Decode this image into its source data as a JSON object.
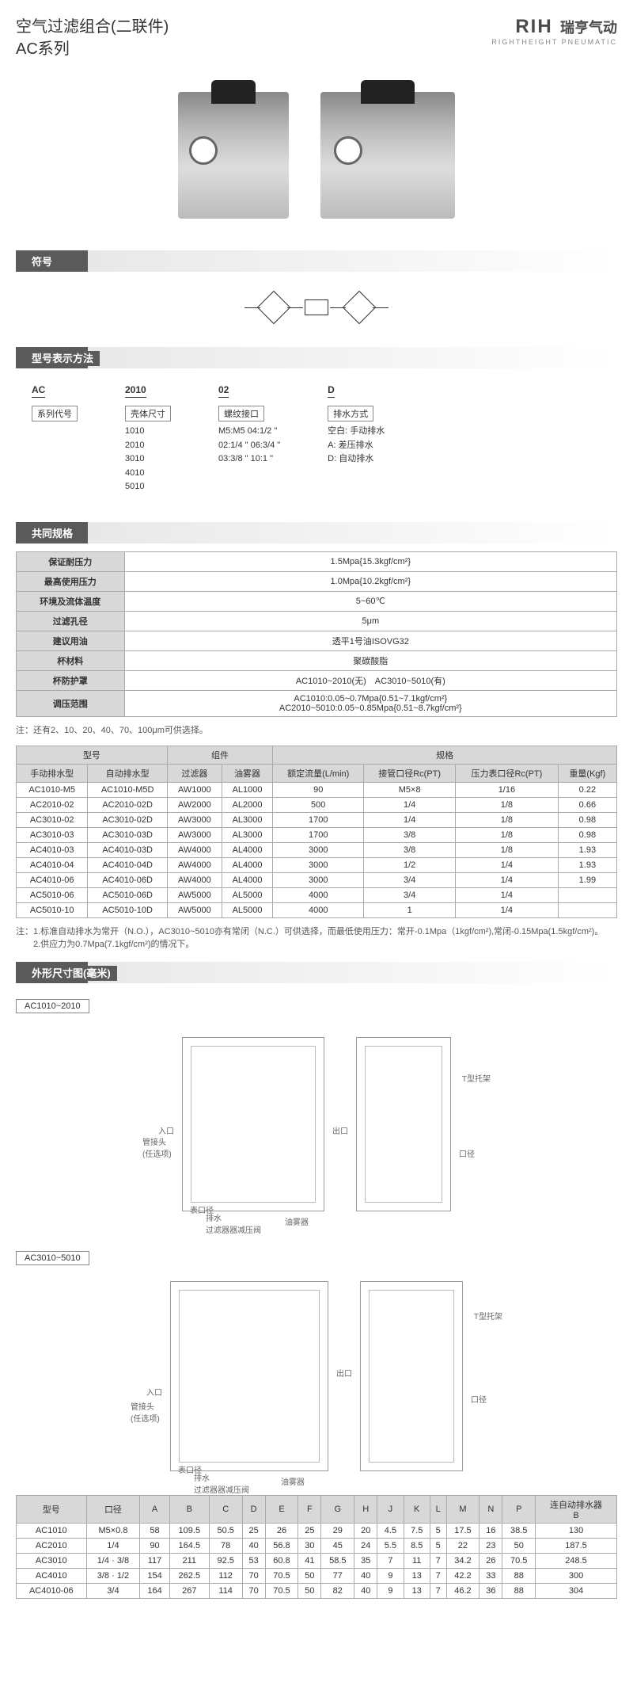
{
  "header": {
    "title_line1": "空气过滤组合(二联件)",
    "title_line2": "AC系列",
    "logo_main": "RIH",
    "logo_cn": "瑞亨气动",
    "logo_sub": "RIGHTHEIGHT PNEUMATIC"
  },
  "sections": {
    "symbol": "符号",
    "model_method": "型号表示方法",
    "common_spec": "共同规格",
    "dimension": "外形尺寸图(毫米)"
  },
  "model_method": {
    "col1": {
      "head": "AC",
      "label": "系列代号"
    },
    "col2": {
      "head": "2010",
      "label": "壳体尺寸",
      "items": [
        "1010",
        "2010",
        "3010",
        "4010",
        "5010"
      ]
    },
    "col3": {
      "head": "02",
      "label": "螺纹接口",
      "items": [
        "M5:M5  04:1/2 \"",
        "02:1/4 \"  06:3/4 \"",
        "03:3/8 \"  10:1 \""
      ]
    },
    "col4": {
      "head": "D",
      "label": "排水方式",
      "items": [
        "空白: 手动排水",
        "A: 差压排水",
        "D: 自动排水"
      ]
    }
  },
  "common_spec": {
    "rows": [
      {
        "label": "保证耐压力",
        "value": "1.5Mpa{15.3kgf/cm²}"
      },
      {
        "label": "最高使用压力",
        "value": "1.0Mpa{10.2kgf/cm²}"
      },
      {
        "label": "环境及流体温度",
        "value": "5~60℃"
      },
      {
        "label": "过滤孔径",
        "value": "5μm"
      },
      {
        "label": "建议用油",
        "value": "透平1号油ISOVG32"
      },
      {
        "label": "杯材料",
        "value": "聚碳酸脂"
      },
      {
        "label": "杯防护罩",
        "value": "AC1010~2010(无)　AC3010~5010(有)"
      },
      {
        "label": "调压范围",
        "value": "AC1010:0.05~0.7Mpa{0.51~7.1kgf/cm²}\nAC2010~5010:0.05~0.85Mpa{0.51~8.7kgf/cm²}"
      }
    ],
    "note": "注：还有2、10、20、40、70、100μm可供选择。"
  },
  "spec_table": {
    "headers": {
      "model": "型号",
      "manual": "手动排水型",
      "auto": "自动排水型",
      "component": "组件",
      "filter": "过滤器",
      "lubricator": "油雾器",
      "spec": "规格",
      "flow": "额定流量(L/min)",
      "port": "接管口径Rc(PT)",
      "gauge": "压力表口径Rc(PT)",
      "weight": "重量(Kgf)"
    },
    "rows": [
      {
        "manual": "AC1010-M5",
        "auto": "AC1010-M5D",
        "filter": "AW1000",
        "lub": "AL1000",
        "flow": "90",
        "port": "M5×8",
        "gauge": "1/16",
        "weight": "0.22"
      },
      {
        "manual": "AC2010-02",
        "auto": "AC2010-02D",
        "filter": "AW2000",
        "lub": "AL2000",
        "flow": "500",
        "port": "1/4",
        "gauge": "1/8",
        "weight": "0.66"
      },
      {
        "manual": "AC3010-02",
        "auto": "AC3010-02D",
        "filter": "AW3000",
        "lub": "AL3000",
        "flow": "1700",
        "port": "1/4",
        "gauge": "1/8",
        "weight": "0.98"
      },
      {
        "manual": "AC3010-03",
        "auto": "AC3010-03D",
        "filter": "AW3000",
        "lub": "AL3000",
        "flow": "1700",
        "port": "3/8",
        "gauge": "1/8",
        "weight": "0.98"
      },
      {
        "manual": "AC4010-03",
        "auto": "AC4010-03D",
        "filter": "AW4000",
        "lub": "AL4000",
        "flow": "3000",
        "port": "3/8",
        "gauge": "1/8",
        "weight": "1.93"
      },
      {
        "manual": "AC4010-04",
        "auto": "AC4010-04D",
        "filter": "AW4000",
        "lub": "AL4000",
        "flow": "3000",
        "port": "1/2",
        "gauge": "1/4",
        "weight": "1.93"
      },
      {
        "manual": "AC4010-06",
        "auto": "AC4010-06D",
        "filter": "AW4000",
        "lub": "AL4000",
        "flow": "3000",
        "port": "3/4",
        "gauge": "1/4",
        "weight": "1.99"
      },
      {
        "manual": "AC5010-06",
        "auto": "AC5010-06D",
        "filter": "AW5000",
        "lub": "AL5000",
        "flow": "4000",
        "port": "3/4",
        "gauge": "1/4",
        "weight": ""
      },
      {
        "manual": "AC5010-10",
        "auto": "AC5010-10D",
        "filter": "AW5000",
        "lub": "AL5000",
        "flow": "4000",
        "port": "1",
        "gauge": "1/4",
        "weight": ""
      }
    ],
    "note": "注：1.标准自动排水为常开（N.O.），AC3010~5010亦有常闭（N.C.）可供选择，而最低使用压力：常开-0.1Mpa（1kgf/cm²),常闭-0.15Mpa(1.5kgf/cm²)。\n　　2.供应力为0.7Mpa(7.1kgf/cm²)的情况下。"
  },
  "dim_labels": {
    "label1": "AC1010~2010",
    "label2": "AC3010~5010",
    "inlet": "入口",
    "outlet": "出口",
    "adapter": "管接头\n(任选项)",
    "gauge_port": "表口径",
    "drain": "排水\n过滤器器减压阀",
    "lubricator": "油雾器",
    "bracket": "T型托架",
    "port": "口径"
  },
  "dim_table": {
    "headers": [
      "型号",
      "口径",
      "A",
      "B",
      "C",
      "D",
      "E",
      "F",
      "G",
      "H",
      "J",
      "K",
      "L",
      "M",
      "N",
      "P",
      "连自动排水器\nB"
    ],
    "rows": [
      [
        "AC1010",
        "M5×0.8",
        "58",
        "109.5",
        "50.5",
        "25",
        "26",
        "25",
        "29",
        "20",
        "4.5",
        "7.5",
        "5",
        "17.5",
        "16",
        "38.5",
        "130"
      ],
      [
        "AC2010",
        "1/4",
        "90",
        "164.5",
        "78",
        "40",
        "56.8",
        "30",
        "45",
        "24",
        "5.5",
        "8.5",
        "5",
        "22",
        "23",
        "50",
        "187.5"
      ],
      [
        "AC3010",
        "1/4 · 3/8",
        "117",
        "211",
        "92.5",
        "53",
        "60.8",
        "41",
        "58.5",
        "35",
        "7",
        "11",
        "7",
        "34.2",
        "26",
        "70.5",
        "248.5"
      ],
      [
        "AC4010",
        "3/8 · 1/2",
        "154",
        "262.5",
        "112",
        "70",
        "70.5",
        "50",
        "77",
        "40",
        "9",
        "13",
        "7",
        "42.2",
        "33",
        "88",
        "300"
      ],
      [
        "AC4010-06",
        "3/4",
        "164",
        "267",
        "114",
        "70",
        "70.5",
        "50",
        "82",
        "40",
        "9",
        "13",
        "7",
        "46.2",
        "36",
        "88",
        "304"
      ]
    ]
  }
}
